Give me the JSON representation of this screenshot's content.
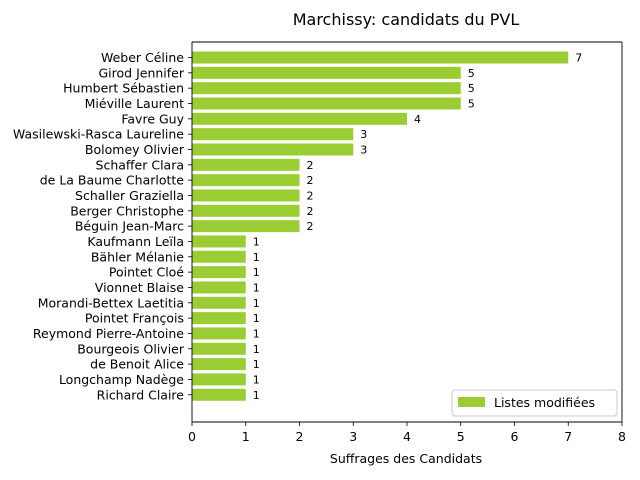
{
  "chart_data": {
    "type": "bar",
    "orientation": "horizontal",
    "title": "Marchissy: candidats du PVL",
    "xlabel": "Suffrages des Candidats",
    "ylabel": "",
    "xlim": [
      0,
      8
    ],
    "xticks": [
      "0",
      "1",
      "2",
      "3",
      "4",
      "5",
      "6",
      "7",
      "8"
    ],
    "bar_color": "#9acd32",
    "grid": false,
    "legend": {
      "position": "lower-right",
      "entries": [
        "Listes modifiées"
      ]
    },
    "categories": [
      "Weber Céline",
      "Girod Jennifer",
      "Humbert Sébastien",
      "Miéville Laurent",
      "Favre Guy",
      "Wasilewski-Rasca Laureline",
      "Bolomey Olivier",
      "Schaffer Clara",
      "de La Baume Charlotte",
      "Schaller Graziella",
      "Berger Christophe",
      "Béguin Jean-Marc",
      "Kaufmann Leïla",
      "Bähler Mélanie",
      "Pointet Cloé",
      "Vionnet Blaise",
      "Morandi-Bettex Laetitia",
      "Pointet François",
      "Reymond Pierre-Antoine",
      "Bourgeois Olivier",
      "de Benoit Alice",
      "Longchamp Nadège",
      "Richard Claire"
    ],
    "values": [
      7,
      5,
      5,
      5,
      4,
      3,
      3,
      2,
      2,
      2,
      2,
      2,
      1,
      1,
      1,
      1,
      1,
      1,
      1,
      1,
      1,
      1,
      1
    ],
    "data_labels": [
      "7",
      "5",
      "5",
      "5",
      "4",
      "3",
      "3",
      "2",
      "2",
      "2",
      "2",
      "2",
      "1",
      "1",
      "1",
      "1",
      "1",
      "1",
      "1",
      "1",
      "1",
      "1",
      "1"
    ]
  }
}
